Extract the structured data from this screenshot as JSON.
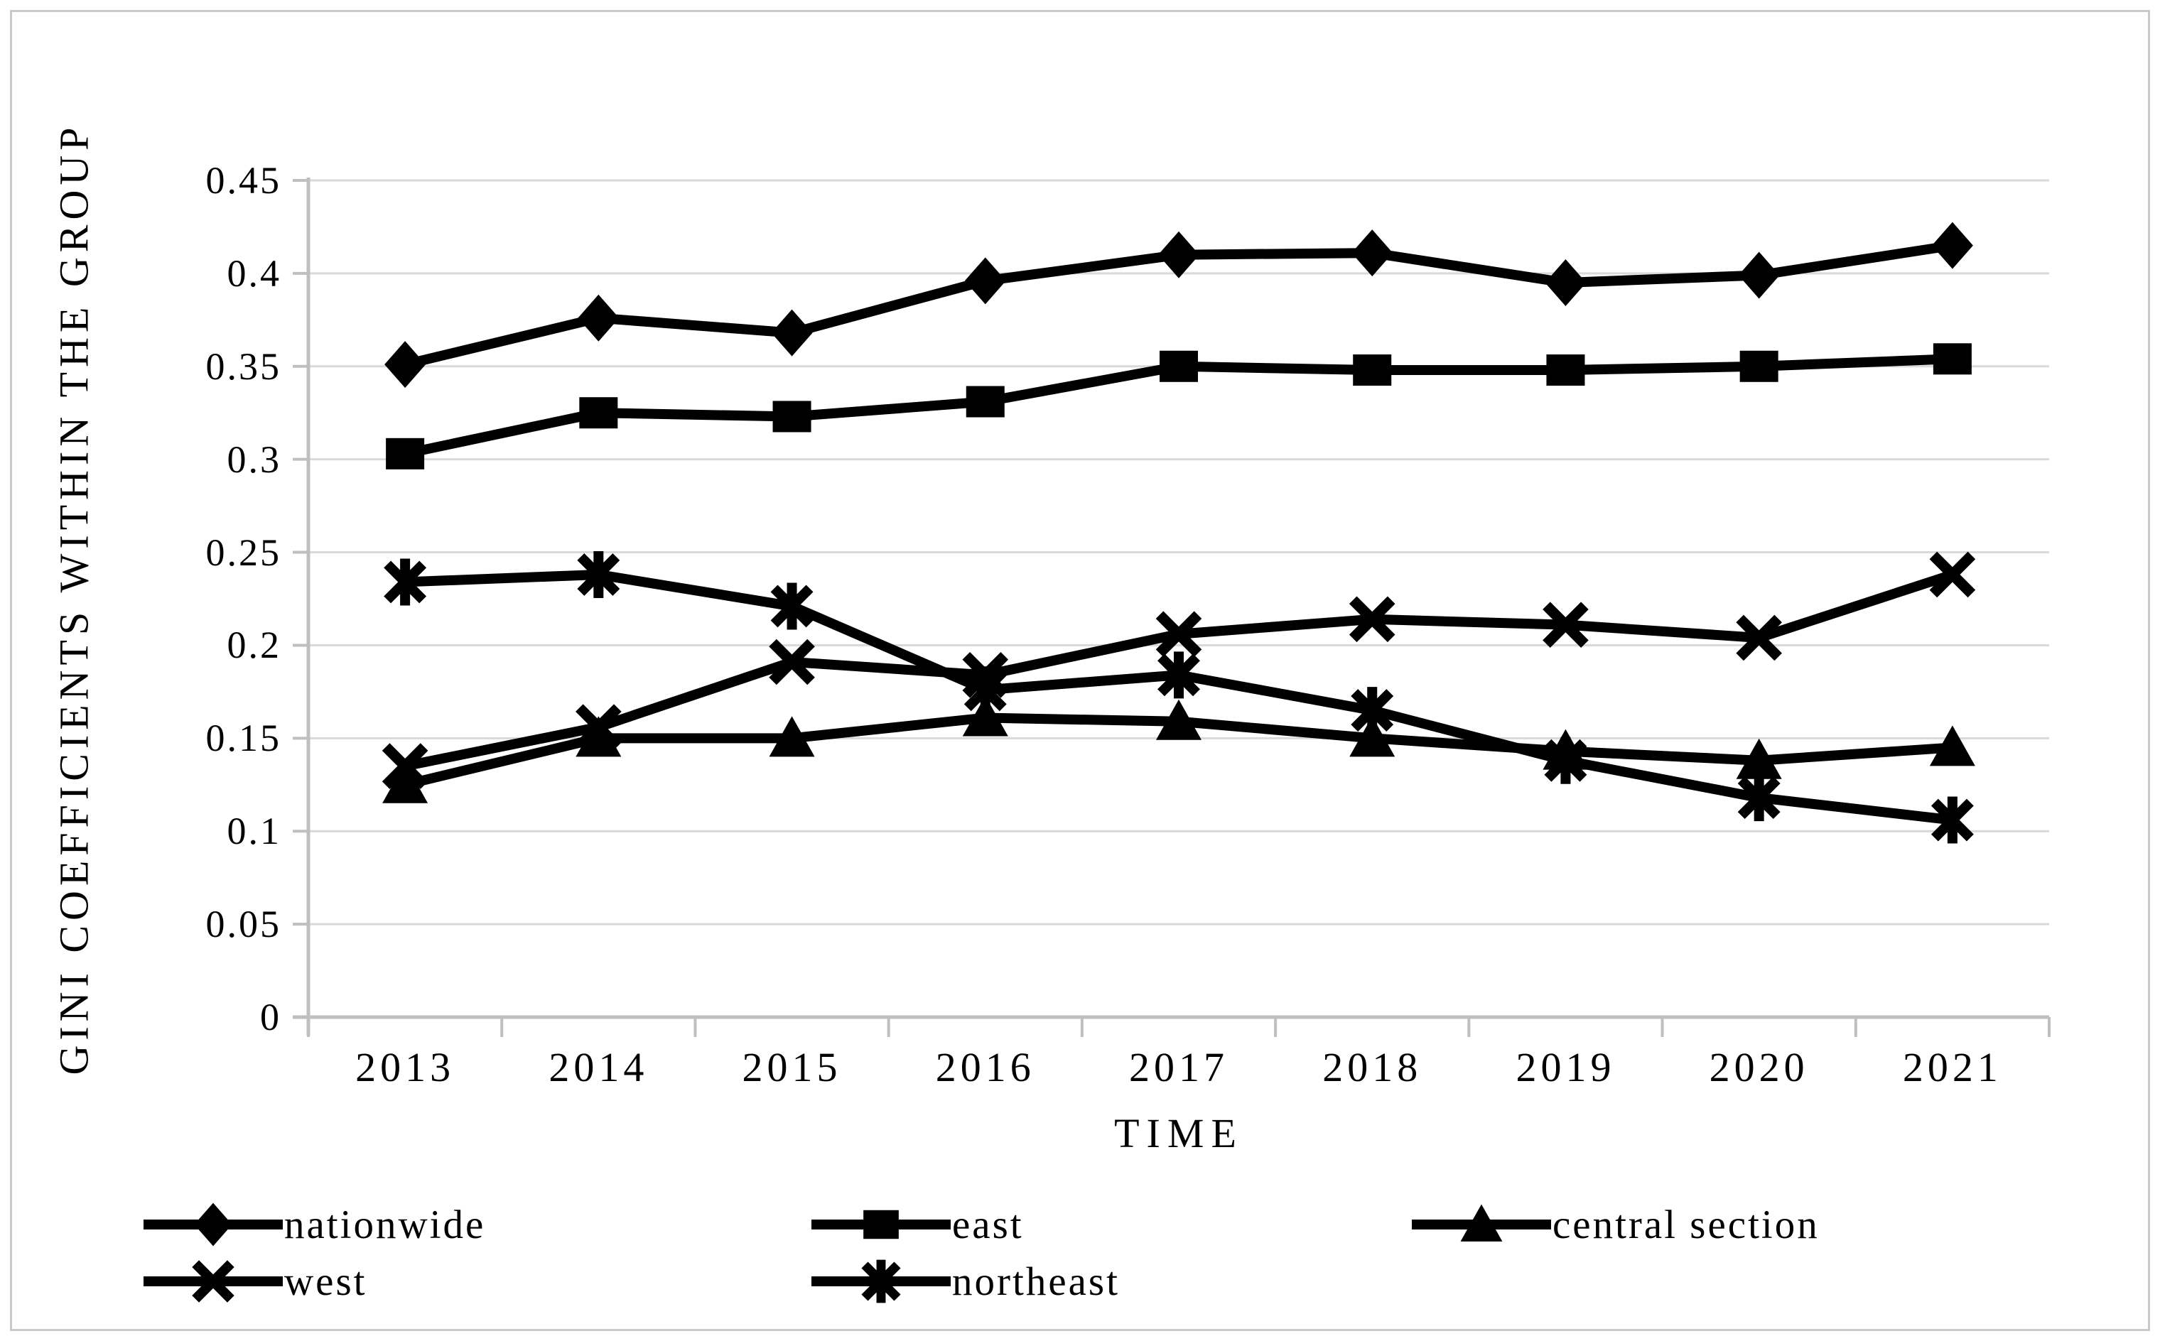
{
  "figure": {
    "background": "#ffffff",
    "border_color": "#c9c9c9",
    "axis_color": "#bfbfbf",
    "gridline_color": "#d9d9d9",
    "series_color": "#000000"
  },
  "chart_data": {
    "type": "line",
    "title": "",
    "xlabel": "TIME",
    "ylabel": "GINI COEFFICIENTS WITHIN THE GROUP",
    "x": [
      "2013",
      "2014",
      "2015",
      "2016",
      "2017",
      "2018",
      "2019",
      "2020",
      "2021"
    ],
    "ylim": [
      0,
      0.45
    ],
    "ytick_step": 0.05,
    "ytick_labels": [
      "0",
      "0.05",
      "0.1",
      "0.15",
      "0.2",
      "0.25",
      "0.3",
      "0.35",
      "0.4",
      "0.45"
    ],
    "grid": "horizontal",
    "legend_position": "bottom",
    "series": [
      {
        "name": "nationwide",
        "marker": "diamond",
        "values": [
          0.351,
          0.376,
          0.368,
          0.396,
          0.41,
          0.411,
          0.395,
          0.399,
          0.415
        ]
      },
      {
        "name": "east",
        "marker": "square",
        "values": [
          0.303,
          0.325,
          0.323,
          0.331,
          0.35,
          0.348,
          0.348,
          0.35,
          0.354
        ]
      },
      {
        "name": "central section",
        "marker": "triangle",
        "values": [
          0.125,
          0.15,
          0.15,
          0.161,
          0.159,
          0.15,
          0.143,
          0.138,
          0.145
        ]
      },
      {
        "name": "west",
        "marker": "x",
        "values": [
          0.135,
          0.156,
          0.191,
          0.184,
          0.206,
          0.214,
          0.211,
          0.204,
          0.238
        ]
      },
      {
        "name": "northeast",
        "marker": "asterisk",
        "values": [
          0.234,
          0.238,
          0.221,
          0.176,
          0.184,
          0.165,
          0.138,
          0.118,
          0.106
        ]
      }
    ]
  }
}
